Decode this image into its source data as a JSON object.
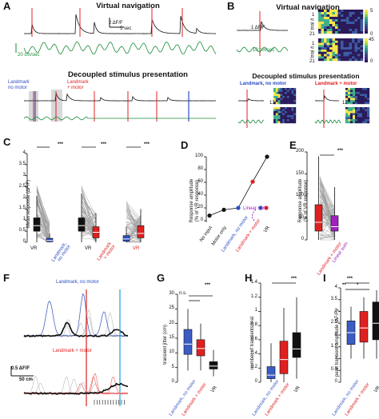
{
  "panels": {
    "A": {
      "label": "A",
      "title_vr": "Virtual navigation",
      "scale_df": "2 ΔF/F",
      "scale_time": "5 sec",
      "scale_speed": "20 cm/sec",
      "title_decoupled": "Decoupled stimulus presentation",
      "lm_label_line1": "Landmark",
      "lm_label_line2": "no motor",
      "lmm_label_line1": "Landmark",
      "lmm_label_line2": "+ motor"
    },
    "B": {
      "label": "B",
      "title_vr": "Virtual navigation",
      "scale_df": "1 ΔF/F",
      "scale_speed": "10 cm/sec",
      "trial_label": "trial #",
      "trial_top": "1",
      "trial_bottom": "21",
      "cbar1_top": "5",
      "cbar1_bottom": "0",
      "cbar2_top": "45",
      "cbar2_bottom": "0",
      "title_decoupled": "Decoupled stimulus presentation",
      "lm_title": "Landmark, no motor",
      "lmm_title": "Landmark + motor",
      "n_lm": "13",
      "n_lmm": "12"
    },
    "C": {
      "label": "C",
      "ylabel": "Mean response (ΔF/F)",
      "yticks": [
        "0",
        "0.5",
        "1",
        "1.5",
        "2",
        "2.5",
        "3",
        "3.5",
        "4"
      ],
      "sig": [
        "***",
        "***",
        "***"
      ],
      "x_vr": "VR",
      "x_lm_1": "Landmark,",
      "x_lm_2": "no motor",
      "x_lmm_1": "Landmark",
      "x_lmm_2": "+ motor"
    },
    "D": {
      "label": "D",
      "ylabel_1": "Response amplitude",
      "ylabel_2": "(% of VR response)",
      "yticks": [
        "0",
        "20",
        "40",
        "60",
        "80",
        "100"
      ],
      "xcats": [
        "No input",
        "Motor only",
        "Landmark, no motor",
        "Landmark + motor",
        "VR"
      ],
      "legend_linear": "Linear sum"
    },
    "E": {
      "label": "E",
      "ylabel_1": "Response amplitude",
      "ylabel_2": "(% of VR response)",
      "yticks": [
        "0",
        "50",
        "100",
        "150",
        "200"
      ],
      "sig": "***",
      "x1": "Landmark + motor",
      "x2": "Linear sum"
    },
    "F": {
      "label": "F",
      "title_lm": "Landmark, no motor",
      "title_lmm": "Landmark + motor",
      "scale_df": "0.5 ΔF/F",
      "scale_dist": "50 cm"
    },
    "G": {
      "label": "G",
      "ylabel": "transient jitter (cm)",
      "yticks": [
        "0",
        "5",
        "10",
        "15",
        "20",
        "25",
        "30"
      ],
      "sig_top": "***",
      "sig_ns": "n.s.",
      "x1": "Landmark, no motor",
      "x2": "Landmark + motor",
      "x3": "VR"
    },
    "H": {
      "label": "H",
      "ylabel": "number of transients/trial",
      "yticks": [
        "0",
        "0.2",
        "0.4",
        "0.6",
        "0.8",
        "1",
        "1.2",
        "1.4"
      ],
      "sig": "***",
      "x1": "Landmark, no motor",
      "x2": "Landmark + motor",
      "x3": "VR"
    },
    "I": {
      "label": "I",
      "ylabel": "peak transient amplitude (ΔF/F)",
      "yticks": [
        "0",
        "0.5",
        "1",
        "1.5",
        "2",
        "2.5",
        "3",
        "3.5",
        "4"
      ],
      "sig_top": "***",
      "sig_mid": "**",
      "sig_small": "*",
      "x1": "Landmark, no motor",
      "x2": "Landmark + motor",
      "x3": "VR"
    }
  },
  "chart_data": [
    {
      "type": "line",
      "panel": "D",
      "categories": [
        "No input",
        "Motor only",
        "Landmark, no motor",
        "Landmark + motor",
        "VR"
      ],
      "values": [
        8,
        17,
        20,
        61,
        100
      ],
      "ylim": [
        0,
        100
      ],
      "ylabel": "Response amplitude (% of VR response)",
      "point_colors": [
        "#111111",
        "#111111",
        "#2b4cc4",
        "#e02020",
        "#111111"
      ],
      "annotation": "Linear sum"
    },
    {
      "type": "box",
      "panel": "G",
      "categories": [
        "Landmark, no motor",
        "Landmark + motor",
        "VR"
      ],
      "colors": [
        "#3b5cc4",
        "#e02020",
        "#111111"
      ],
      "ylim": [
        0,
        30
      ],
      "boxes": [
        {
          "q1": 9.5,
          "median": 13,
          "q3": 18,
          "lo": 4,
          "hi": 25
        },
        {
          "q1": 9,
          "median": 11.5,
          "q3": 14.5,
          "lo": 4,
          "hi": 20
        },
        {
          "q1": 4.5,
          "median": 5.5,
          "q3": 7,
          "lo": 2,
          "hi": 11
        }
      ]
    },
    {
      "type": "box",
      "panel": "H",
      "categories": [
        "Landmark, no motor",
        "Landmark + motor",
        "VR"
      ],
      "colors": [
        "#3b5cc4",
        "#e02020",
        "#111111"
      ],
      "ylim": [
        0,
        1.4
      ],
      "boxes": [
        {
          "q1": 0.05,
          "median": 0.1,
          "q3": 0.22,
          "lo": 0,
          "hi": 0.55
        },
        {
          "q1": 0.12,
          "median": 0.32,
          "q3": 0.58,
          "lo": 0,
          "hi": 1.05
        },
        {
          "q1": 0.35,
          "median": 0.47,
          "q3": 0.7,
          "lo": 0.05,
          "hi": 1.2
        }
      ]
    },
    {
      "type": "box",
      "panel": "I",
      "categories": [
        "Landmark, no motor",
        "Landmark + motor",
        "VR"
      ],
      "colors": [
        "#3b5cc4",
        "#e02020",
        "#111111"
      ],
      "ylim": [
        0,
        4
      ],
      "boxes": [
        {
          "q1": 1.6,
          "median": 2.1,
          "q3": 2.6,
          "lo": 1,
          "hi": 3.2
        },
        {
          "q1": 1.7,
          "median": 2.3,
          "q3": 3.0,
          "lo": 1,
          "hi": 3.6
        },
        {
          "q1": 1.8,
          "median": 2.5,
          "q3": 3.4,
          "lo": 1,
          "hi": 3.9
        }
      ]
    }
  ]
}
